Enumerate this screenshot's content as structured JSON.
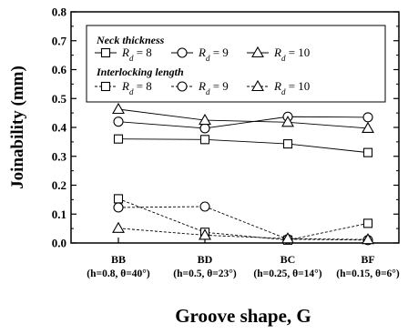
{
  "chart_data": {
    "type": "line",
    "xlabel": "Groove shape, G",
    "ylabel": "Joinability (mm)",
    "ylim": [
      0,
      0.8
    ],
    "yticks": [
      "0.0",
      "0.1",
      "0.2",
      "0.3",
      "0.4",
      "0.5",
      "0.6",
      "0.7",
      "0.8"
    ],
    "categories": [
      "BB",
      "BD",
      "BC",
      "BF"
    ],
    "category_params": [
      "(h=0.8, θ=40°)",
      "(h=0.5, θ=23°)",
      "(h=0.25, θ=14°)",
      "(h=0.15, θ=6°)"
    ],
    "legend_position": "top",
    "legend_groups": [
      {
        "title": "Neck thickness",
        "style": "solid"
      },
      {
        "title": "Interlocking length",
        "style": "dashed"
      }
    ],
    "legend_symbol": "R",
    "legend_subscript": "d",
    "series": [
      {
        "name": "8",
        "group": 0,
        "marker": "square",
        "values": [
          0.36,
          0.358,
          0.343,
          0.313
        ]
      },
      {
        "name": "9",
        "group": 0,
        "marker": "circle",
        "values": [
          0.42,
          0.397,
          0.437,
          0.435
        ]
      },
      {
        "name": "10",
        "group": 0,
        "marker": "triangle",
        "values": [
          0.463,
          0.425,
          0.418,
          0.397
        ]
      },
      {
        "name": "8",
        "group": 1,
        "marker": "square",
        "values": [
          0.153,
          0.037,
          0.01,
          0.068
        ]
      },
      {
        "name": "9",
        "group": 1,
        "marker": "circle",
        "values": [
          0.123,
          0.126,
          0.013,
          0.01
        ]
      },
      {
        "name": "10",
        "group": 1,
        "marker": "triangle",
        "values": [
          0.051,
          0.027,
          0.015,
          0.012
        ]
      }
    ]
  }
}
